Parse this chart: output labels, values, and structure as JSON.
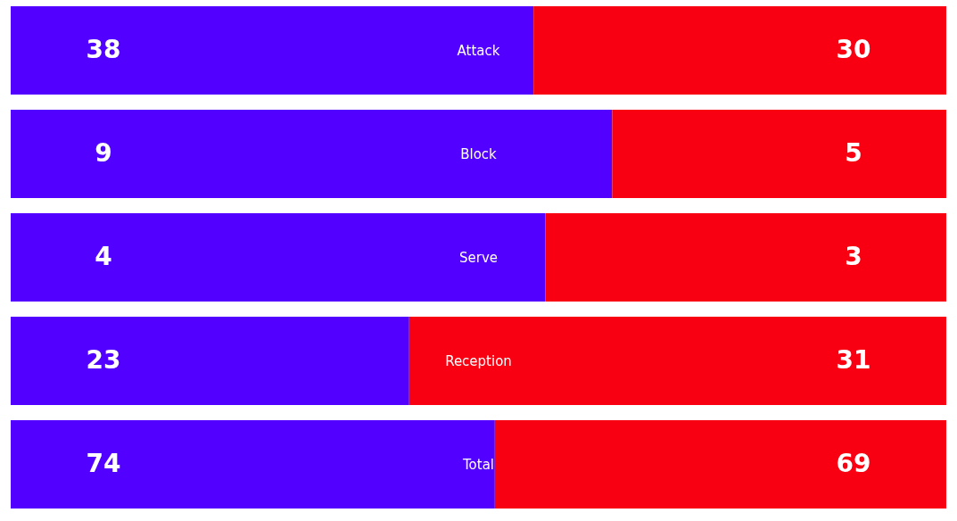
{
  "chart_data": [
    {
      "type": "bar",
      "orientation": "horizontal",
      "stacked": true,
      "categories": [
        "Attack"
      ],
      "series": [
        {
          "color": "#5200ff",
          "values": [
            38
          ]
        },
        {
          "color": "#f80011",
          "values": [
            30
          ]
        }
      ],
      "xlim": [
        0,
        68
      ],
      "data_labels": true,
      "tick_labels": "y"
    },
    {
      "type": "bar",
      "orientation": "horizontal",
      "stacked": true,
      "categories": [
        "Block"
      ],
      "series": [
        {
          "color": "#5200ff",
          "values": [
            9
          ]
        },
        {
          "color": "#f80011",
          "values": [
            5
          ]
        }
      ],
      "xlim": [
        0,
        14
      ],
      "data_labels": true,
      "tick_labels": "y"
    },
    {
      "type": "bar",
      "orientation": "horizontal",
      "stacked": true,
      "categories": [
        "Serve"
      ],
      "series": [
        {
          "color": "#5200ff",
          "values": [
            4
          ]
        },
        {
          "color": "#f80011",
          "values": [
            3
          ]
        }
      ],
      "xlim": [
        0,
        7
      ],
      "data_labels": true,
      "tick_labels": "y"
    },
    {
      "type": "bar",
      "orientation": "horizontal",
      "stacked": true,
      "categories": [
        "Reception"
      ],
      "series": [
        {
          "color": "#5200ff",
          "values": [
            23
          ]
        },
        {
          "color": "#f80011",
          "values": [
            31
          ]
        }
      ],
      "xlim": [
        0,
        54
      ],
      "data_labels": true,
      "tick_labels": "y"
    },
    {
      "type": "bar",
      "orientation": "horizontal",
      "stacked": true,
      "categories": [
        "Total"
      ],
      "series": [
        {
          "color": "#5200ff",
          "values": [
            74
          ]
        },
        {
          "color": "#f80011",
          "values": [
            69
          ]
        }
      ],
      "xlim": [
        0,
        143
      ],
      "data_labels": true,
      "tick_labels": "y"
    }
  ]
}
